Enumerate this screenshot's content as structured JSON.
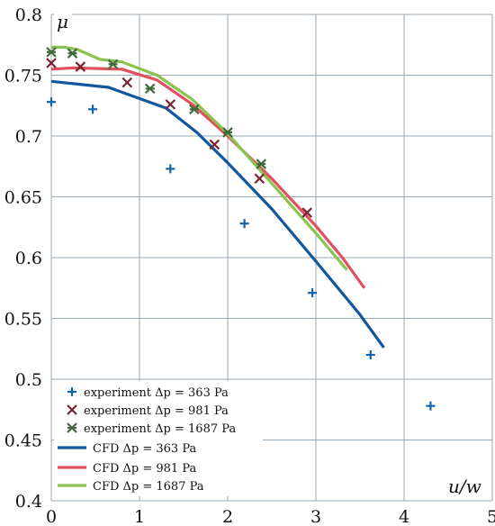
{
  "chart_data": {
    "type": "line",
    "xlabel": "u/w",
    "ylabel": "μ",
    "xlim": [
      0,
      5
    ],
    "ylim": [
      0.4,
      0.8
    ],
    "xticks": [
      "0",
      "1",
      "2",
      "3",
      "4",
      "5"
    ],
    "yticks": [
      "0.4",
      "0.45",
      "0.5",
      "0.55",
      "0.6",
      "0.65",
      "0.7",
      "0.75",
      "0.8"
    ],
    "grid": true,
    "legend_position": "bottom-left",
    "series": [
      {
        "name": "experiment Δp = 363 Pa",
        "kind": "scatter",
        "marker": "plus",
        "color": "#1464a8",
        "points": [
          [
            0.0,
            0.728
          ],
          [
            0.47,
            0.722
          ],
          [
            1.35,
            0.673
          ],
          [
            2.19,
            0.628
          ],
          [
            2.96,
            0.571
          ],
          [
            3.62,
            0.52
          ],
          [
            4.3,
            0.478
          ]
        ]
      },
      {
        "name": "experiment Δp = 981 Pa",
        "kind": "scatter",
        "marker": "x",
        "color": "#7a2230",
        "points": [
          [
            0.0,
            0.76
          ],
          [
            0.33,
            0.757
          ],
          [
            0.86,
            0.744
          ],
          [
            1.35,
            0.726
          ],
          [
            1.85,
            0.693
          ],
          [
            2.36,
            0.665
          ],
          [
            2.9,
            0.637
          ]
        ]
      },
      {
        "name": "experiment Δp = 1687 Pa",
        "kind": "scatter",
        "marker": "x-star",
        "color": "#3f6b3a",
        "points": [
          [
            0.0,
            0.769
          ],
          [
            0.24,
            0.768
          ],
          [
            0.7,
            0.759
          ],
          [
            1.12,
            0.739
          ],
          [
            1.62,
            0.722
          ],
          [
            2.0,
            0.703
          ],
          [
            2.38,
            0.677
          ]
        ]
      },
      {
        "name": "CFD Δp = 363 Pa",
        "kind": "line",
        "color": "#11579d",
        "points": [
          [
            0.0,
            0.745
          ],
          [
            0.65,
            0.74
          ],
          [
            1.3,
            0.723
          ],
          [
            1.65,
            0.703
          ],
          [
            2.0,
            0.678
          ],
          [
            2.5,
            0.64
          ],
          [
            3.0,
            0.597
          ],
          [
            3.5,
            0.553
          ],
          [
            3.77,
            0.526
          ]
        ]
      },
      {
        "name": "CFD Δp = 981 Pa",
        "kind": "line",
        "color": "#e0505f",
        "points": [
          [
            0.0,
            0.755
          ],
          [
            0.25,
            0.756
          ],
          [
            0.8,
            0.755
          ],
          [
            1.2,
            0.746
          ],
          [
            1.6,
            0.726
          ],
          [
            2.0,
            0.7
          ],
          [
            2.5,
            0.665
          ],
          [
            3.0,
            0.626
          ],
          [
            3.3,
            0.6
          ],
          [
            3.55,
            0.575
          ]
        ]
      },
      {
        "name": "CFD Δp = 1687 Pa",
        "kind": "line",
        "color": "#8ac44e",
        "points": [
          [
            0.0,
            0.773
          ],
          [
            0.15,
            0.773
          ],
          [
            0.3,
            0.771
          ],
          [
            0.55,
            0.763
          ],
          [
            0.8,
            0.761
          ],
          [
            1.2,
            0.75
          ],
          [
            1.6,
            0.73
          ],
          [
            2.0,
            0.702
          ],
          [
            2.5,
            0.661
          ],
          [
            3.0,
            0.62
          ],
          [
            3.35,
            0.59
          ]
        ]
      }
    ]
  }
}
